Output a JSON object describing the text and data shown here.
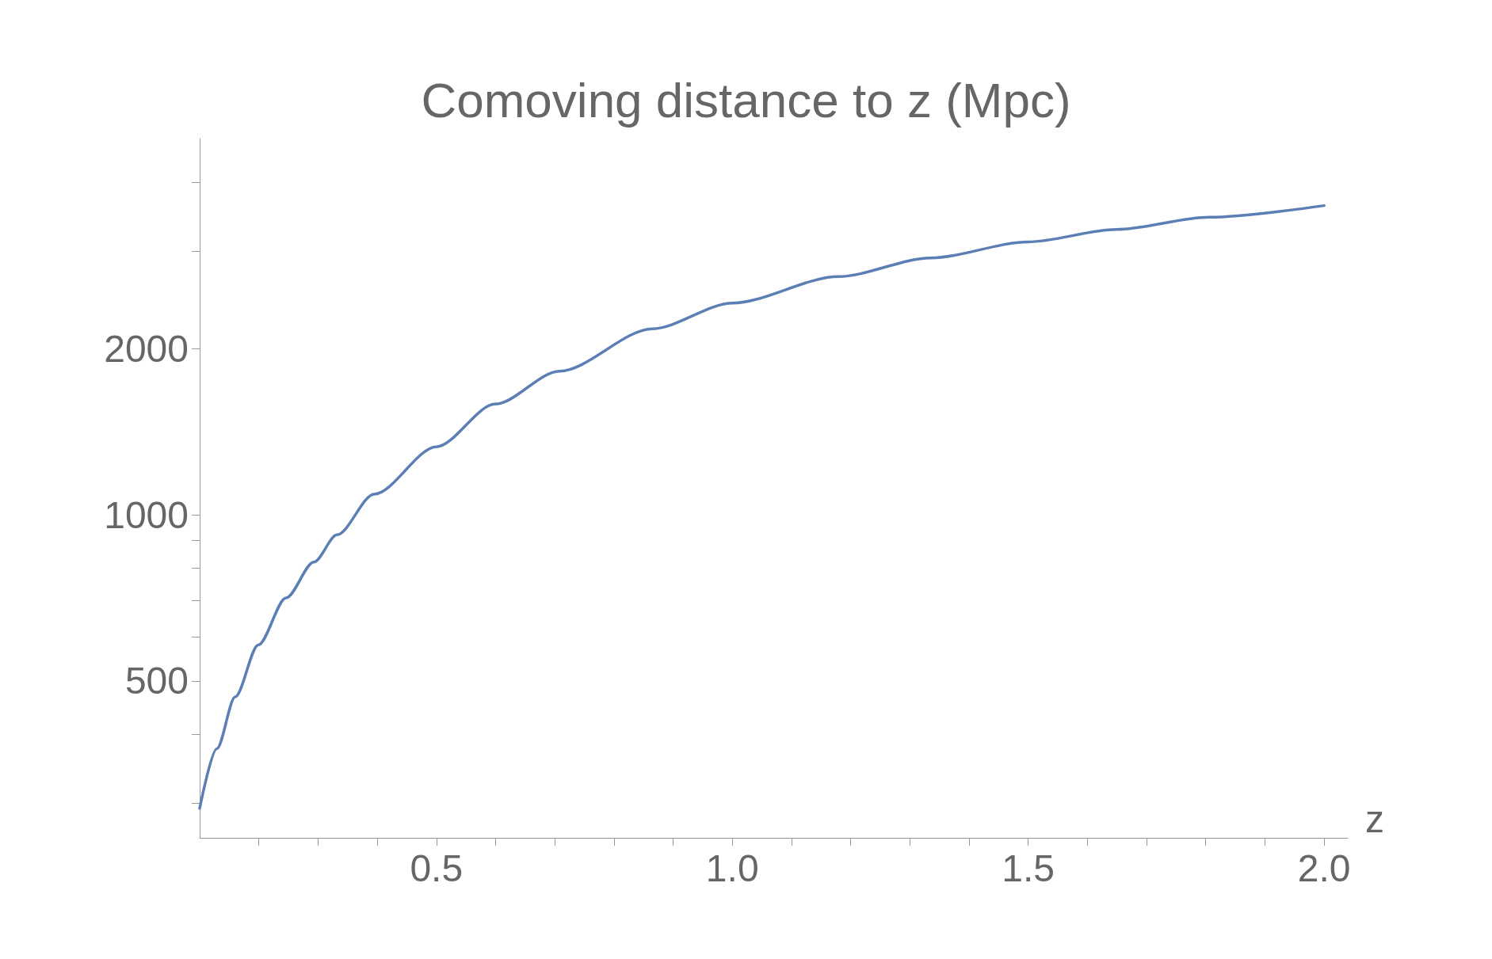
{
  "chart_data": {
    "type": "line",
    "title": "Comoving distance to z (Mpc)",
    "xlabel": "z",
    "x": [
      0.1,
      0.129,
      0.16,
      0.199,
      0.246,
      0.293,
      0.332,
      0.395,
      0.5,
      0.599,
      0.708,
      0.865,
      1.0,
      1.179,
      1.335,
      1.5,
      1.649,
      1.806,
      2.0
    ],
    "series": [
      {
        "color": "#5b7fb5",
        "values": [
          294,
          377,
          468,
          581,
          707,
          821,
          920,
          1090,
          1328,
          1586,
          1820,
          2172,
          2417,
          2699,
          2918,
          3120,
          3285,
          3458,
          3630
        ]
      }
    ],
    "xlim": [
      0.1,
      2.04
    ],
    "xticks": [
      {
        "value": 0.2,
        "label": null
      },
      {
        "value": 0.3,
        "label": null
      },
      {
        "value": 0.4,
        "label": null
      },
      {
        "value": 0.5,
        "label": "0.5"
      },
      {
        "value": 0.6,
        "label": null
      },
      {
        "value": 0.7,
        "label": null
      },
      {
        "value": 0.8,
        "label": null
      },
      {
        "value": 0.9,
        "label": null
      },
      {
        "value": 1.0,
        "label": "1.0"
      },
      {
        "value": 1.1,
        "label": null
      },
      {
        "value": 1.2,
        "label": null
      },
      {
        "value": 1.3,
        "label": null
      },
      {
        "value": 1.4,
        "label": null
      },
      {
        "value": 1.5,
        "label": "1.5"
      },
      {
        "value": 1.6,
        "label": null
      },
      {
        "value": 1.7,
        "label": null
      },
      {
        "value": 1.8,
        "label": null
      },
      {
        "value": 1.9,
        "label": null
      },
      {
        "value": 2.0,
        "label": "2.0"
      }
    ],
    "ylim": [
      260,
      4800
    ],
    "yticks": [
      {
        "value": 300,
        "label": null
      },
      {
        "value": 400,
        "label": null
      },
      500,
      {
        "value": 600,
        "label": null
      },
      {
        "value": 700,
        "label": null
      },
      {
        "value": 800,
        "label": null
      },
      {
        "value": 900,
        "label": null
      },
      1000,
      2000,
      {
        "value": 3000,
        "label": null
      },
      {
        "value": 4000,
        "label": null
      }
    ],
    "log": true,
    "grid": false,
    "marker": "none",
    "line_style": "solid"
  }
}
